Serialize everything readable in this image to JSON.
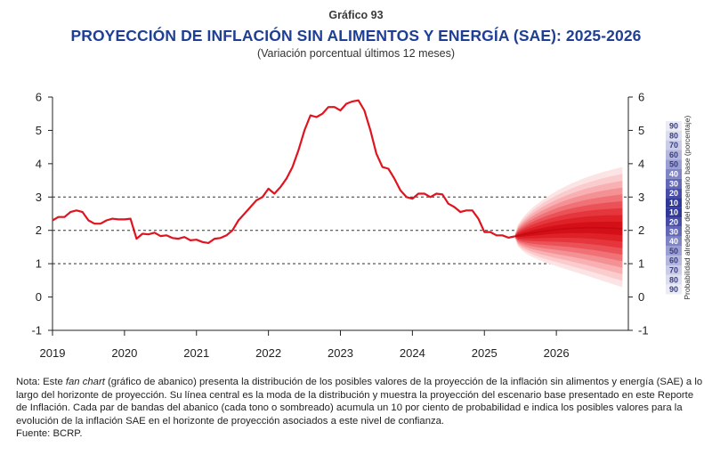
{
  "header": {
    "number": "Gráfico 93",
    "title": "PROYECCIÓN DE INFLACIÓN SIN ALIMENTOS Y ENERGÍA (SAE): 2025-2026",
    "subtitle": "(Variación porcentual últimos 12 meses)"
  },
  "chart_data": {
    "type": "line",
    "title": "PROYECCIÓN DE INFLACIÓN SIN ALIMENTOS Y ENERGÍA (SAE): 2025-2026",
    "subtitle": "(Variación porcentual últimos 12 meses)",
    "ylim": [
      -1,
      6
    ],
    "yticks": [
      -1,
      0,
      1,
      2,
      3,
      4,
      5,
      6
    ],
    "dashed_gridlines": [
      1,
      2,
      3
    ],
    "xlim": [
      2019,
      2027
    ],
    "xticks": [
      2019,
      2020,
      2021,
      2022,
      2023,
      2024,
      2025,
      2026
    ],
    "line_color": "#e0141e",
    "series": [
      {
        "x": [
          2019.0,
          2019.083,
          2019.167,
          2019.25,
          2019.333,
          2019.417,
          2019.5,
          2019.583,
          2019.667,
          2019.75,
          2019.833,
          2019.917,
          2020.0,
          2020.083,
          2020.167,
          2020.25,
          2020.333,
          2020.417,
          2020.5,
          2020.583,
          2020.667,
          2020.75,
          2020.833,
          2020.917,
          2021.0,
          2021.083,
          2021.167,
          2021.25,
          2021.333,
          2021.417,
          2021.5,
          2021.583,
          2021.667,
          2021.75,
          2021.833,
          2021.917,
          2022.0,
          2022.083,
          2022.167,
          2022.25,
          2022.333,
          2022.417,
          2022.5,
          2022.583,
          2022.667,
          2022.75,
          2022.833,
          2022.917,
          2023.0,
          2023.083,
          2023.167,
          2023.25,
          2023.333,
          2023.417,
          2023.5,
          2023.583,
          2023.667,
          2023.75,
          2023.833,
          2023.917,
          2024.0,
          2024.083,
          2024.167,
          2024.25,
          2024.333,
          2024.417,
          2024.5,
          2024.583,
          2024.667,
          2024.75,
          2024.833,
          2024.917,
          2025.0,
          2025.083,
          2025.167,
          2025.25,
          2025.333,
          2025.417
        ],
        "y": [
          2.3,
          2.4,
          2.4,
          2.55,
          2.6,
          2.55,
          2.3,
          2.2,
          2.2,
          2.3,
          2.35,
          2.33,
          2.33,
          2.35,
          1.75,
          1.9,
          1.88,
          1.93,
          1.83,
          1.85,
          1.77,
          1.75,
          1.8,
          1.7,
          1.72,
          1.65,
          1.62,
          1.75,
          1.77,
          1.85,
          2.0,
          2.3,
          2.5,
          2.7,
          2.9,
          3.0,
          3.25,
          3.1,
          3.3,
          3.55,
          3.9,
          4.4,
          5.0,
          5.45,
          5.4,
          5.5,
          5.7,
          5.7,
          5.6,
          5.8,
          5.87,
          5.9,
          5.6,
          5.0,
          4.3,
          3.9,
          3.85,
          3.55,
          3.2,
          3.0,
          2.95,
          3.1,
          3.1,
          3.0,
          3.1,
          3.08,
          2.8,
          2.7,
          2.55,
          2.6,
          2.6,
          2.35,
          1.95,
          1.95,
          1.85,
          1.85,
          1.78,
          1.82
        ]
      }
    ],
    "fan_chart": {
      "start": 2025.417,
      "end": 2026.917,
      "center_start": 1.82,
      "center_end": 2.05,
      "outer_width_end": 1.85,
      "band_levels": [
        90,
        80,
        70,
        60,
        50,
        40,
        30,
        20,
        10
      ],
      "band_colors": [
        "#fde4e4",
        "#fbcccd",
        "#f8b0b2",
        "#f49194",
        "#f07276",
        "#ea5257",
        "#e4363c",
        "#de2027",
        "#d40f17"
      ]
    },
    "legend": {
      "levels": [
        "90",
        "80",
        "70",
        "60",
        "50",
        "40",
        "30",
        "20",
        "10",
        "10",
        "20",
        "30",
        "40",
        "50",
        "60",
        "70",
        "80",
        "90"
      ],
      "colors": [
        "#ececf6",
        "#dddff0",
        "#cbcde8",
        "#b5b8de",
        "#9b9fd2",
        "#7f84c5",
        "#6267b7",
        "#464ca8",
        "#2f3799",
        "#2f3799",
        "#464ca8",
        "#6267b7",
        "#7f84c5",
        "#9b9fd2",
        "#b5b8de",
        "#cbcde8",
        "#dddff0",
        "#ececf6"
      ],
      "label": "Probabilidad alrededor del escenario base (porcentaje)"
    }
  },
  "note": {
    "prefix": "Nota: Este ",
    "fan_term": "fan chart",
    "body": " (gráfico de abanico) presenta la distribución de los posibles valores de la proyección de la inflación sin alimentos y energía (SAE) a lo largo del horizonte de proyección. Su línea central es la moda de la distribución y muestra la proyección del escenario base presentado en este Reporte de Inflación. Cada par de bandas del abanico (cada tono o sombreado) acumula un 10 por ciento de probabilidad e indica los posibles valores para la evolución de la inflación SAE en el horizonte de proyección asociados a este nivel de confianza.",
    "source": "Fuente: BCRP."
  }
}
